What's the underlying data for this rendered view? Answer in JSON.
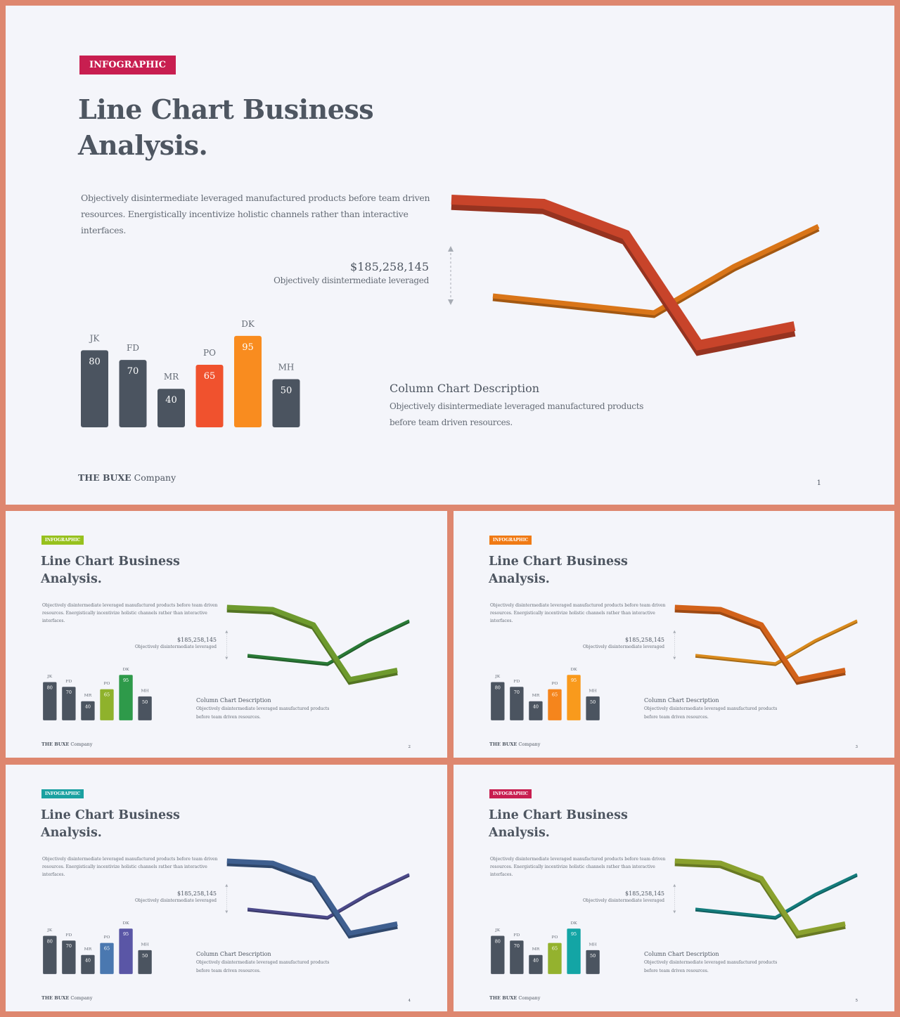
{
  "slides": [
    {
      "badge": "INFOGRAPHIC",
      "badge_color": "#c81e50",
      "title_line1": "Line Chart Business",
      "title_line2": "Analysis.",
      "intro_line1": "Objectively disintermediate leveraged manufactured products before team  driven",
      "intro_line2": "resources. Energistically incentivize holistic channels rather than interactive interfaces.",
      "stat_value": "$185,258,145",
      "stat_caption": "Objectively disintermediate leveraged",
      "column_title": "Column Chart Description",
      "column_text_line1": "Objectively disintermediate leveraged manufactured products",
      "column_text_line2": "before team  driven resources.",
      "footer_brand": "THE BUXE",
      "footer_company": " Company",
      "page_number": "1",
      "colors": {
        "line_a": "#c8442a",
        "line_b": "#d97518",
        "bar_highlight_1": "#f0522e",
        "bar_highlight_2": "#f98c1f"
      }
    },
    {
      "badge": "INFOGRAPHIC",
      "badge_color": "#97c11d",
      "title_line1": "Line Chart Business",
      "title_line2": "Analysis.",
      "intro_line1": "Objectively disintermediate leveraged manufactured products before team  driven",
      "intro_line2": "resources. Energistically incentivize holistic channels rather than interactive interfaces.",
      "stat_value": "$185,258,145",
      "stat_caption": "Objectively disintermediate leveraged",
      "column_title": "Column Chart Description",
      "column_text_line1": "Objectively disintermediate leveraged manufactured products",
      "column_text_line2": "before team  driven resources.",
      "footer_brand": "THE BUXE",
      "footer_company": " Company",
      "page_number": "2",
      "colors": {
        "line_a": "#6e9a2e",
        "line_b": "#2a7a36",
        "bar_highlight_1": "#8fb22c",
        "bar_highlight_2": "#2e9a4a"
      }
    },
    {
      "badge": "INFOGRAPHIC",
      "badge_color": "#f07a14",
      "title_line1": "Line Chart Business",
      "title_line2": "Analysis.",
      "intro_line1": "Objectively disintermediate leveraged manufactured products before team  driven",
      "intro_line2": "resources. Energistically incentivize holistic channels rather than interactive interfaces.",
      "stat_value": "$185,258,145",
      "stat_caption": "Objectively disintermediate leveraged",
      "column_title": "Column Chart Description",
      "column_text_line1": "Objectively disintermediate leveraged manufactured products",
      "column_text_line2": "before team  driven resources.",
      "footer_brand": "THE BUXE",
      "footer_company": " Company",
      "page_number": "3",
      "colors": {
        "line_a": "#d2621a",
        "line_b": "#d98a1c",
        "bar_highlight_1": "#f5851c",
        "bar_highlight_2": "#f99a1c"
      }
    },
    {
      "badge": "INFOGRAPHIC",
      "badge_color": "#1ba1a1",
      "title_line1": "Line Chart Business",
      "title_line2": "Analysis.",
      "intro_line1": "Objectively disintermediate leveraged manufactured products before team  driven",
      "intro_line2": "resources. Energistically incentivize holistic channels rather than interactive interfaces.",
      "stat_value": "$185,258,145",
      "stat_caption": "Objectively disintermediate leveraged",
      "column_title": "Column Chart Description",
      "column_text_line1": "Objectively disintermediate leveraged manufactured products",
      "column_text_line2": "before team  driven resources.",
      "footer_brand": "THE BUXE",
      "footer_company": " Company",
      "page_number": "4",
      "colors": {
        "line_a": "#3f5f8f",
        "line_b": "#4c4a8a",
        "bar_highlight_1": "#4a78b0",
        "bar_highlight_2": "#5a56a6"
      }
    },
    {
      "badge": "INFOGRAPHIC",
      "badge_color": "#c81e50",
      "title_line1": "Line Chart Business",
      "title_line2": "Analysis.",
      "intro_line1": "Objectively disintermediate leveraged manufactured products before team  driven",
      "intro_line2": "resources. Energistically incentivize holistic channels rather than interactive interfaces.",
      "stat_value": "$185,258,145",
      "stat_caption": "Objectively disintermediate leveraged",
      "column_title": "Column Chart Description",
      "column_text_line1": "Objectively disintermediate leveraged manufactured products",
      "column_text_line2": "before team  driven resources.",
      "footer_brand": "THE BUXE",
      "footer_company": " Company",
      "page_number": "5",
      "colors": {
        "line_a": "#8aa12e",
        "line_b": "#147c7c",
        "bar_highlight_1": "#94b22e",
        "bar_highlight_2": "#13a5a5"
      }
    }
  ],
  "chart_data": {
    "type": "bar",
    "categories": [
      "JK",
      "FD",
      "MR",
      "PO",
      "DK",
      "MH"
    ],
    "values": [
      80,
      70,
      40,
      65,
      95,
      50
    ],
    "value_labels": [
      "80",
      "70",
      "40",
      "65",
      "95",
      "50"
    ],
    "bar_color_default": "#4b5460",
    "highlight_indices": [
      3,
      4
    ],
    "ylim": [
      0,
      100
    ]
  }
}
